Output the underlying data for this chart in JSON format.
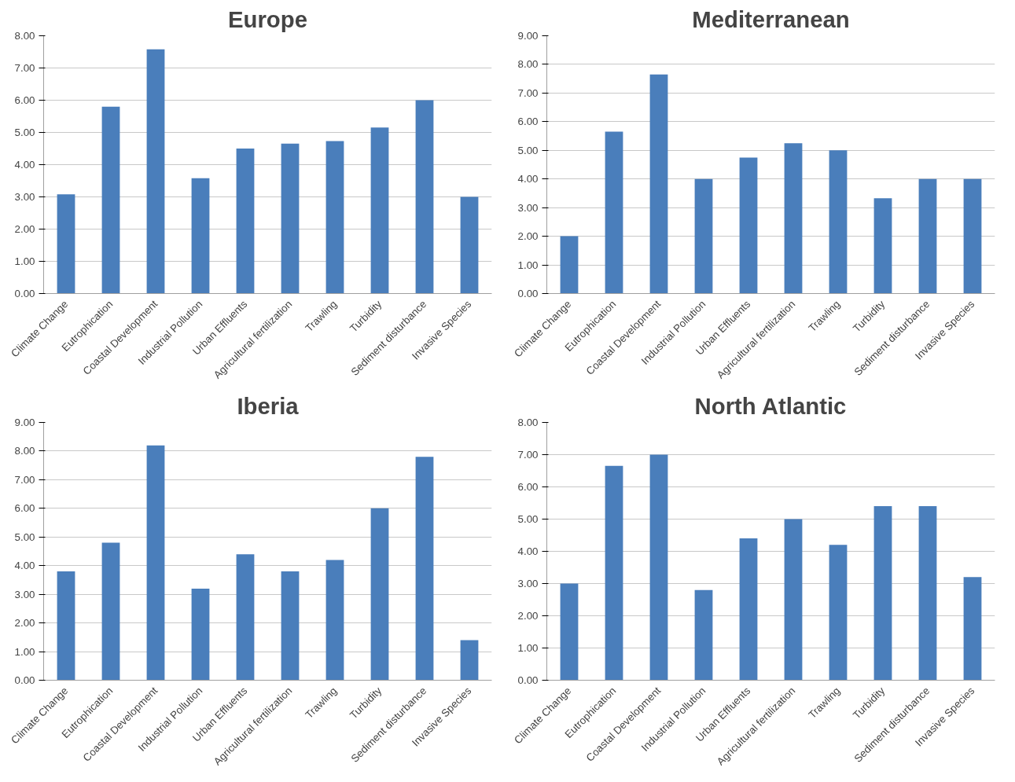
{
  "chart_data": [
    {
      "type": "bar",
      "title": "Europe",
      "categories": [
        "Climate Change",
        "Eutrophication",
        "Coastal Development",
        "Industrial Pollution",
        "Urban Effluents",
        "Agricultural fertilization",
        "Trawling",
        "Turbidity",
        "Sediment disturbance",
        "Invasive Species"
      ],
      "color": "#4a7ebb",
      "values": [
        3.08,
        5.8,
        7.58,
        3.58,
        4.5,
        4.65,
        4.73,
        5.15,
        6.0,
        3.0
      ],
      "ylim": [
        0,
        8
      ],
      "yticks": [
        {
          "value": 0,
          "label": "0.00"
        },
        {
          "value": 1,
          "label": "1.00"
        },
        {
          "value": 2,
          "label": "2.00"
        },
        {
          "value": 3,
          "label": "3.00"
        },
        {
          "value": 4,
          "label": "4.00"
        },
        {
          "value": 5,
          "label": "5.00"
        },
        {
          "value": 6,
          "label": "6.00"
        },
        {
          "value": 7,
          "label": "7.00"
        },
        {
          "value": 8,
          "label": "8.00"
        }
      ],
      "grid": "y"
    },
    {
      "type": "bar",
      "title": "Mediterranean",
      "categories": [
        "Climate Change",
        "Eutrophication",
        "Coastal Development",
        "Industrial Pollution",
        "Urban Effluents",
        "Agricultural fertilization",
        "Trawling",
        "Turbidity",
        "Sediment disturbance",
        "Invasive Species"
      ],
      "color": "#4a7ebb",
      "values": [
        2.0,
        5.65,
        7.65,
        4.0,
        4.75,
        5.25,
        5.0,
        3.33,
        4.0,
        4.0
      ],
      "ylim": [
        0,
        9
      ],
      "yticks": [
        {
          "value": 0,
          "label": "0.00"
        },
        {
          "value": 1,
          "label": "1.00"
        },
        {
          "value": 2,
          "label": "2.00"
        },
        {
          "value": 3,
          "label": "3.00"
        },
        {
          "value": 4,
          "label": "4.00"
        },
        {
          "value": 5,
          "label": "5.00"
        },
        {
          "value": 6,
          "label": "6.00"
        },
        {
          "value": 7,
          "label": "7.00"
        },
        {
          "value": 8,
          "label": "8.00"
        },
        {
          "value": 9,
          "label": "9.00"
        }
      ],
      "grid": "y"
    },
    {
      "type": "bar",
      "title": "Iberia",
      "categories": [
        "Climate Change",
        "Eutrophication",
        "Coastal Development",
        "Industrial Pollution",
        "Urban Effluents",
        "Agricultural fertilization",
        "Trawling",
        "Turbidity",
        "Sediment disturbance",
        "Invasive Species"
      ],
      "color": "#4a7ebb",
      "values": [
        3.8,
        4.8,
        8.2,
        3.2,
        4.4,
        3.8,
        4.2,
        6.0,
        7.8,
        1.4
      ],
      "ylim": [
        0,
        9
      ],
      "yticks": [
        {
          "value": 0,
          "label": "0.00"
        },
        {
          "value": 1,
          "label": "1.00"
        },
        {
          "value": 2,
          "label": "2.00"
        },
        {
          "value": 3,
          "label": "3.00"
        },
        {
          "value": 4,
          "label": "4.00"
        },
        {
          "value": 5,
          "label": "5.00"
        },
        {
          "value": 6,
          "label": "6.00"
        },
        {
          "value": 7,
          "label": "7.00"
        },
        {
          "value": 8,
          "label": "8.00"
        },
        {
          "value": 9,
          "label": "9.00"
        }
      ],
      "grid": "y"
    },
    {
      "type": "bar",
      "title": "North Atlantic",
      "categories": [
        "Climate Change",
        "Eutrophication",
        "Coastal Development",
        "Industrial Pollution",
        "Urban Effluents",
        "Agricultural fertilization",
        "Trawling",
        "Turbidity",
        "Sediment disturbance",
        "Invasive Species"
      ],
      "color": "#4a7ebb",
      "values": [
        3.0,
        6.65,
        7.0,
        2.8,
        4.4,
        5.0,
        4.2,
        5.4,
        5.4,
        3.2
      ],
      "ylim": [
        0,
        8
      ],
      "yticks": [
        {
          "value": 0,
          "label": "0.00"
        },
        {
          "value": 1,
          "label": "1.00"
        },
        {
          "value": 2,
          "label": "2.00"
        },
        {
          "value": 3,
          "label": "3.00"
        },
        {
          "value": 4,
          "label": "4.00"
        },
        {
          "value": 5,
          "label": "5.00"
        },
        {
          "value": 6,
          "label": "6.00"
        },
        {
          "value": 7,
          "label": "7.00"
        },
        {
          "value": 8,
          "label": "8.00"
        }
      ],
      "grid": "y"
    }
  ]
}
